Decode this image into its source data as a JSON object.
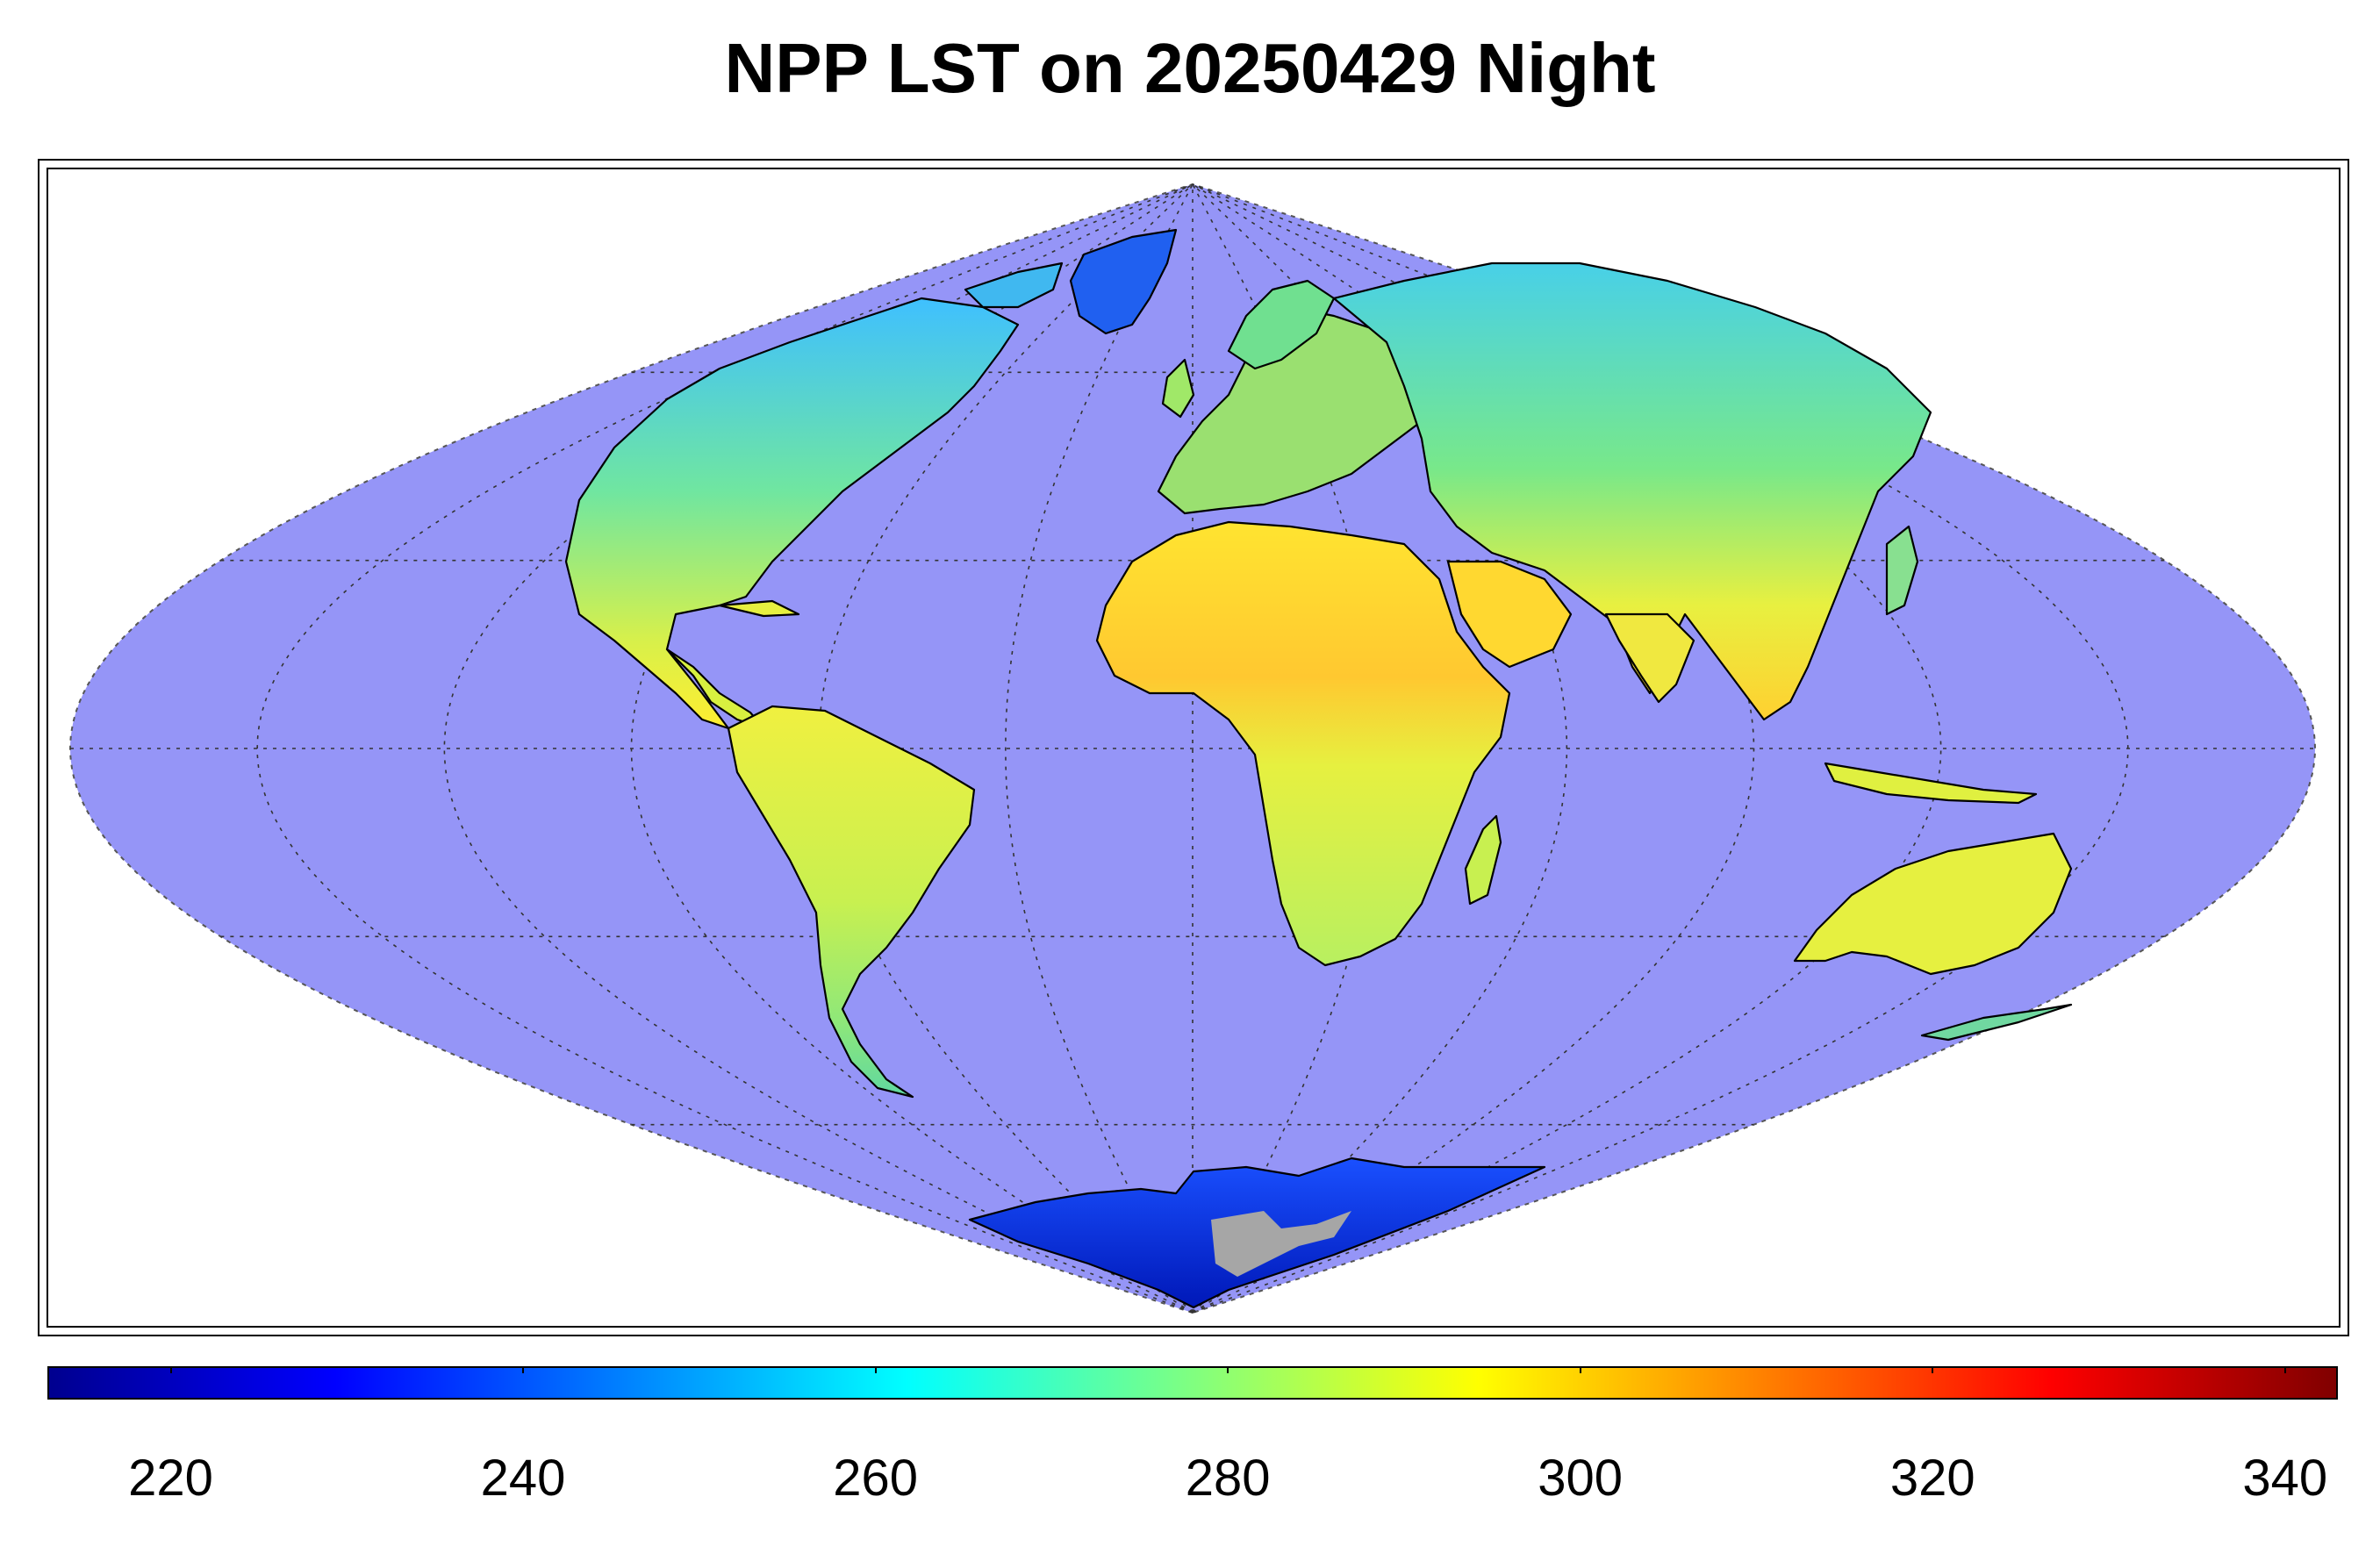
{
  "title": "NPP LST on 20250429 Night",
  "map": {
    "projection": "sinusoidal",
    "ocean_color": "#9595f7",
    "coastline_color": "#000000",
    "graticule_color": "#333333",
    "icesheet_nodata_color": "#a6a6a6",
    "regions": [
      {
        "name": "north-america",
        "color_group": "cool-to-warm"
      },
      {
        "name": "greenland",
        "color_group": "cold"
      },
      {
        "name": "south-america",
        "color_group": "warm"
      },
      {
        "name": "europe",
        "color_group": "mild"
      },
      {
        "name": "africa",
        "color_group": "warm"
      },
      {
        "name": "asia",
        "color_group": "cool-to-warm"
      },
      {
        "name": "australia",
        "color_group": "warm"
      },
      {
        "name": "antarctica",
        "color_group": "cold"
      }
    ]
  },
  "colorbar": {
    "colormap": "jet",
    "min": 213,
    "max": 343,
    "ticks": [
      "220",
      "240",
      "260",
      "280",
      "300",
      "320",
      "340"
    ],
    "tick_values": [
      220,
      240,
      260,
      280,
      300,
      320,
      340
    ]
  }
}
